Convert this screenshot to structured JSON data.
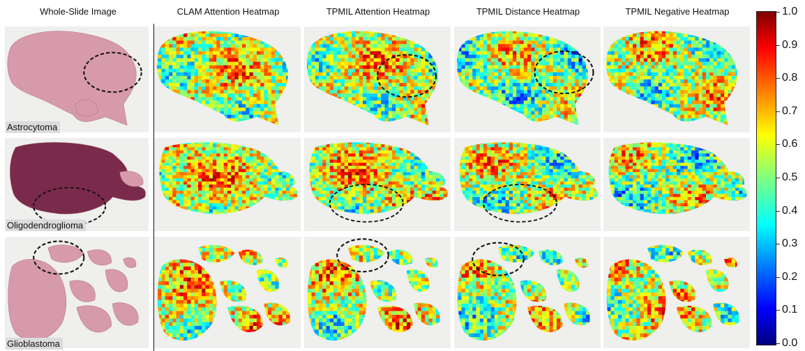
{
  "columns": [
    {
      "title": "Whole-Slide Image"
    },
    {
      "title": "CLAM Attention Heatmap"
    },
    {
      "title": "TPMIL Attention Heatmap"
    },
    {
      "title": "TPMIL Distance Heatmap"
    },
    {
      "title": "TPMIL Negative Heatmap"
    }
  ],
  "rows": [
    {
      "label": "Astrocytoma"
    },
    {
      "label": "Oligodendroglioma"
    },
    {
      "label": "Glioblastoma"
    }
  ],
  "colorbar": {
    "min": 0.0,
    "max": 1.0,
    "colormap": "jet",
    "ticks": [
      "0.0",
      "0.1",
      "0.2",
      "0.3",
      "0.4",
      "0.5",
      "0.6",
      "0.7",
      "0.8",
      "0.9",
      "1.0"
    ]
  },
  "colors": {
    "tissue_he": "#d79aac",
    "tissue_he_dark": "#7a2a4a",
    "slide_bg": "#efefed"
  }
}
